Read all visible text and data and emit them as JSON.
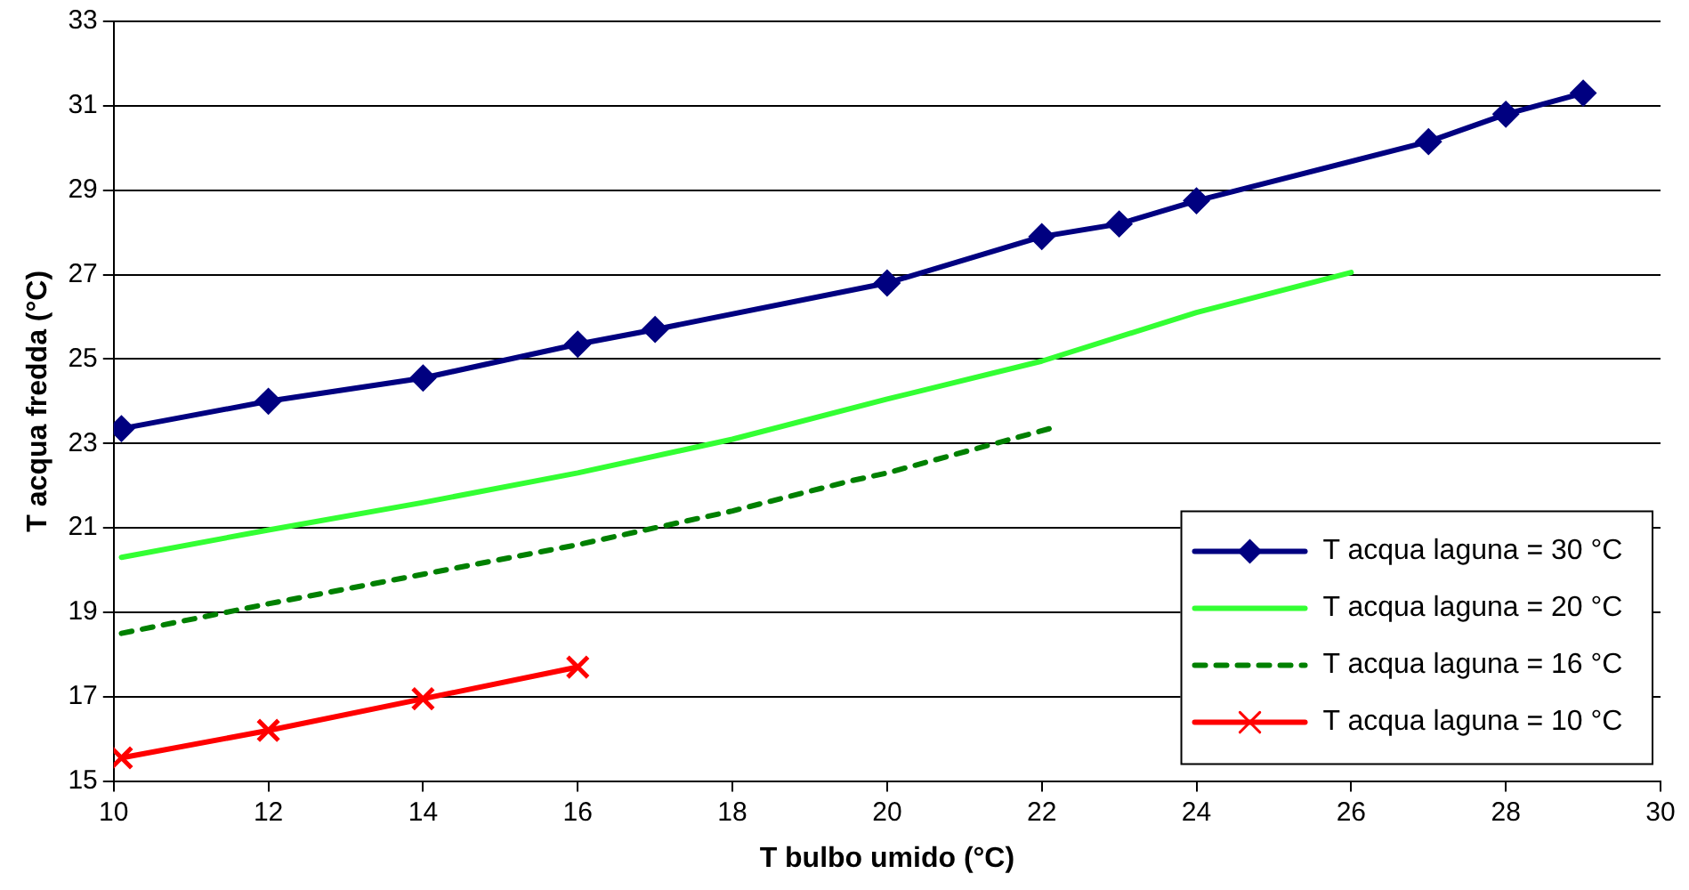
{
  "chart_data": {
    "type": "line",
    "xlabel": "T bulbo umido (°C)",
    "ylabel": "T acqua fredda (°C)",
    "xlim": [
      10,
      30
    ],
    "xticks": [
      10,
      12,
      14,
      16,
      18,
      20,
      22,
      24,
      26,
      28,
      30
    ],
    "ylim": [
      15,
      33
    ],
    "yticks": [
      15,
      17,
      19,
      21,
      23,
      25,
      27,
      29,
      31,
      33
    ],
    "grid": "y",
    "legend": "bottom right",
    "series": [
      {
        "name": "T acqua laguna = 30 °C",
        "color": "#000080",
        "marker": "diamond",
        "line_style": "solid",
        "x": [
          10.1,
          12,
          14,
          16,
          17,
          20,
          22,
          23,
          24,
          27,
          28,
          29
        ],
        "values": [
          23.35,
          24.0,
          24.55,
          25.35,
          25.7,
          26.8,
          27.9,
          28.2,
          28.75,
          30.15,
          30.8,
          31.3
        ]
      },
      {
        "name": "T acqua laguna = 20 °C",
        "color": "#33ff33",
        "marker": "none",
        "line_style": "solid",
        "x": [
          10.1,
          12,
          14,
          16,
          18,
          20,
          22,
          24,
          26
        ],
        "values": [
          20.3,
          20.95,
          21.6,
          22.3,
          23.1,
          24.05,
          24.95,
          26.1,
          27.05
        ]
      },
      {
        "name": "T acqua laguna = 16 °C",
        "color": "#008000",
        "marker": "none",
        "line_style": "dashed",
        "x": [
          10.1,
          12,
          14,
          16,
          18,
          19.5,
          20,
          22.2
        ],
        "values": [
          18.5,
          19.2,
          19.9,
          20.6,
          21.4,
          22.1,
          22.3,
          23.4
        ]
      },
      {
        "name": "T acqua laguna = 10 °C",
        "color": "#ff0000",
        "marker": "cross",
        "line_style": "solid",
        "x": [
          10.1,
          12,
          14,
          16
        ],
        "values": [
          15.55,
          16.2,
          16.95,
          17.7
        ]
      }
    ]
  }
}
